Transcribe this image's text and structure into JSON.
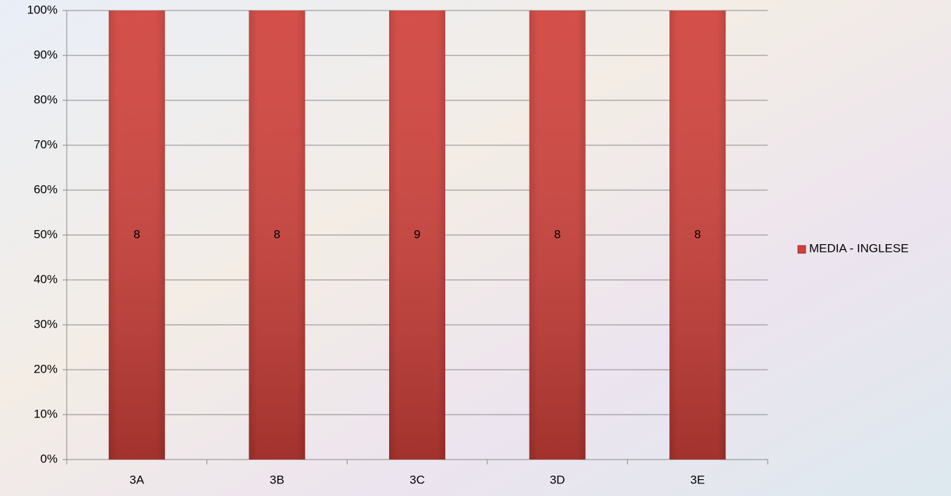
{
  "chart_data": {
    "type": "bar100",
    "categories": [
      "3A",
      "3B",
      "3C",
      "3D",
      "3E"
    ],
    "series": [
      {
        "name": "MEDIA - INGLESE",
        "color": "#d0403a",
        "values": [
          8,
          8,
          9,
          8,
          8
        ]
      }
    ],
    "ylim": [
      0,
      100
    ],
    "yticks": [
      {
        "value": 0,
        "label": "0%"
      },
      {
        "value": 10,
        "label": "10%"
      },
      {
        "value": 20,
        "label": "20%"
      },
      {
        "value": 30,
        "label": "30%"
      },
      {
        "value": 40,
        "label": "40%"
      },
      {
        "value": 50,
        "label": "50%"
      },
      {
        "value": 60,
        "label": "60%"
      },
      {
        "value": 70,
        "label": "70%"
      },
      {
        "value": 80,
        "label": "80%"
      },
      {
        "value": 90,
        "label": "90%"
      },
      {
        "value": 100,
        "label": "100%"
      }
    ],
    "grid": true,
    "legend": "right"
  }
}
